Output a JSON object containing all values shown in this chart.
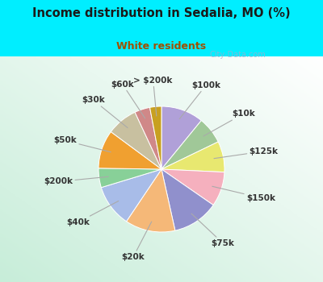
{
  "title": "Income distribution in Sedalia, MO (%)",
  "subtitle": "White residents",
  "title_color": "#1a1a1a",
  "subtitle_color": "#a05000",
  "background_color": "#00eeff",
  "labels": [
    "$100k",
    "$10k",
    "$125k",
    "$150k",
    "$75k",
    "$20k",
    "$40k",
    "$200k",
    "$50k",
    "$30k",
    "$60k",
    "> $200k"
  ],
  "values": [
    11,
    7,
    8,
    9,
    12,
    13,
    11,
    5,
    10,
    8,
    4,
    3
  ],
  "colors": [
    "#b0a0d8",
    "#a0c898",
    "#e8e870",
    "#f5b0be",
    "#9090cc",
    "#f5b878",
    "#a8bce8",
    "#88d098",
    "#f0a030",
    "#c8c0a0",
    "#d08888",
    "#c8a020"
  ],
  "watermark": "City-Data.com",
  "label_fontsize": 7.5
}
